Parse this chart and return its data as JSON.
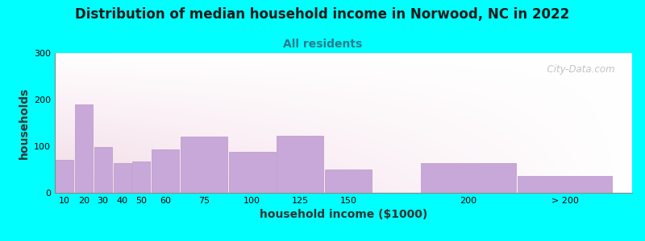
{
  "title": "Distribution of median household income in Norwood, NC in 2022",
  "subtitle": "All residents",
  "xlabel": "household income ($1000)",
  "ylabel": "households",
  "background_outer": "#00FFFF",
  "bar_color": "#C8A8D8",
  "bar_edge_color": "#B898C8",
  "watermark": "  City-Data.com",
  "ylim": [
    0,
    300
  ],
  "yticks": [
    0,
    100,
    200,
    300
  ],
  "categories": [
    "10",
    "20",
    "30",
    "40",
    "50",
    "60",
    "75",
    "100",
    "125",
    "150",
    "200",
    "> 200"
  ],
  "values": [
    70,
    190,
    98,
    63,
    68,
    93,
    120,
    88,
    122,
    50,
    63,
    37
  ],
  "bar_widths": [
    10,
    10,
    10,
    10,
    10,
    15,
    25,
    25,
    25,
    25,
    50,
    50
  ],
  "bar_lefts": [
    10,
    20,
    30,
    40,
    50,
    60,
    75,
    100,
    125,
    150,
    200,
    250
  ],
  "title_fontsize": 12,
  "subtitle_fontsize": 10,
  "axis_label_fontsize": 10,
  "tick_fontsize": 8,
  "xlim_left": 10,
  "xlim_right": 310
}
